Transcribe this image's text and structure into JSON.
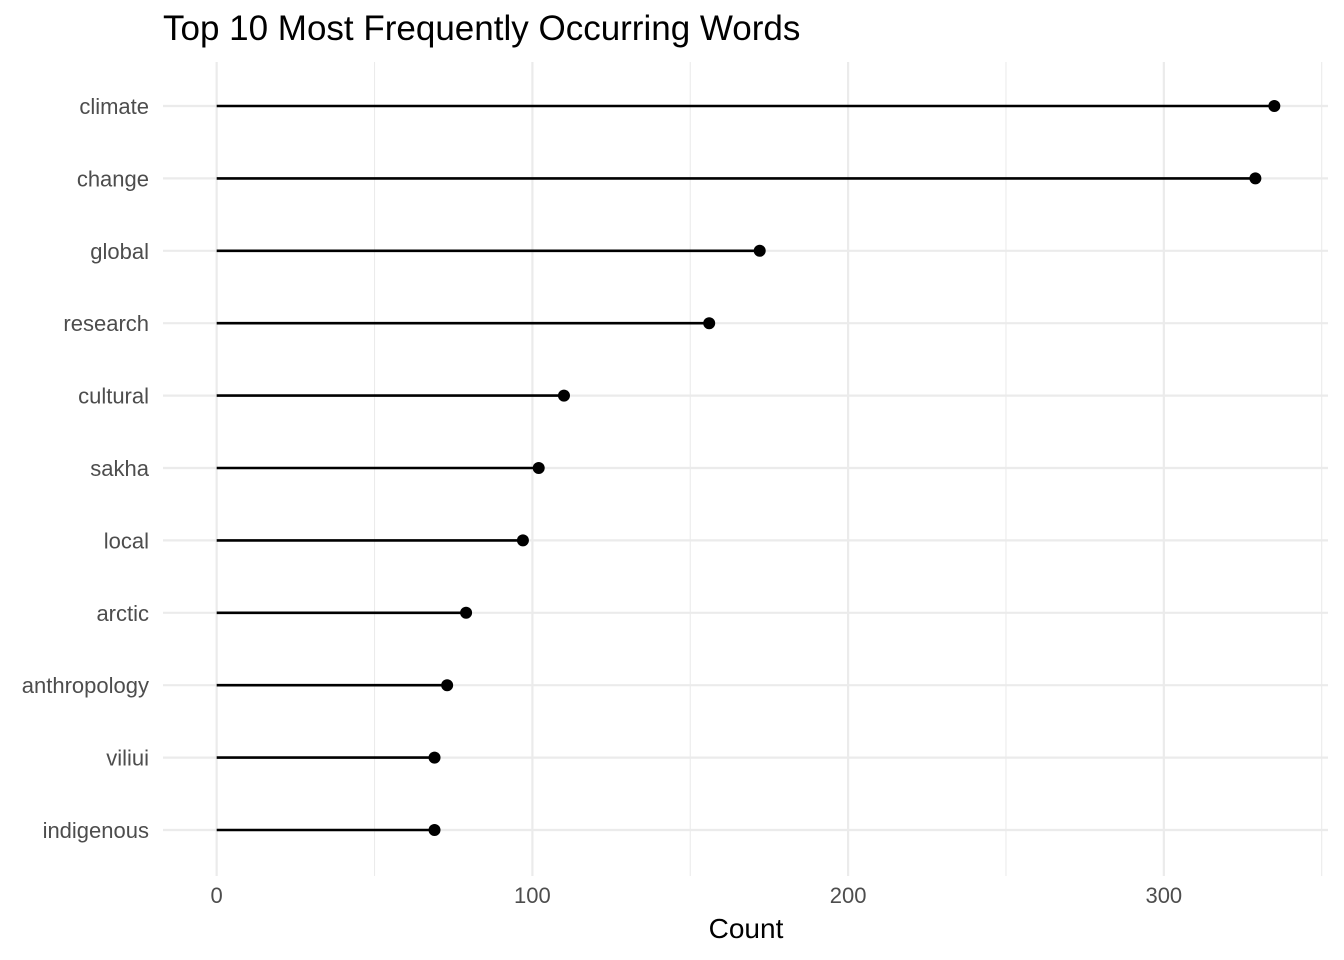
{
  "chart_data": {
    "type": "lollipop",
    "title": "Top 10 Most Frequently Occurring Words",
    "xlabel": "Count",
    "ylabel": "",
    "xlim": [
      -17,
      352
    ],
    "x_ticks": [
      0,
      100,
      200,
      300
    ],
    "x_tick_labels": [
      "0",
      "100",
      "200",
      "300"
    ],
    "grid": true,
    "categories": [
      "climate",
      "change",
      "global",
      "research",
      "cultural",
      "sakha",
      "local",
      "arctic",
      "anthropology",
      "viliui",
      "indigenous"
    ],
    "values": [
      335,
      329,
      172,
      156,
      110,
      102,
      97,
      79,
      73,
      69,
      69
    ]
  }
}
